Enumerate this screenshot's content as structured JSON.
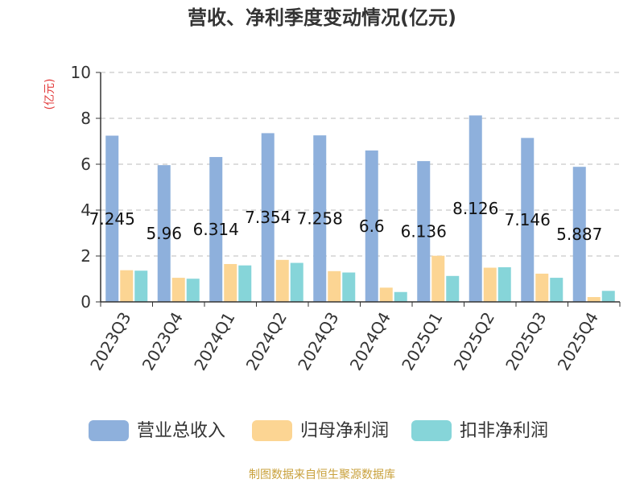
{
  "chart_data": {
    "type": "bar",
    "title": "营收、净利季度变动情况(亿元)",
    "ylabel": "(亿元)",
    "ylim": [
      0,
      10
    ],
    "yticks": [
      0,
      2,
      4,
      6,
      8,
      10
    ],
    "grid": true,
    "legend_position": "bottom",
    "categories": [
      "2023Q3",
      "2023Q4",
      "2024Q1",
      "2024Q2",
      "2024Q3",
      "2024Q4",
      "2025Q1",
      "2025Q2",
      "2025Q3",
      "2025Q4"
    ],
    "series": [
      {
        "name": "营业总收入",
        "color": "#8eb0dc",
        "values": [
          7.245,
          5.96,
          6.314,
          7.354,
          7.258,
          6.6,
          6.136,
          8.126,
          7.146,
          5.887
        ],
        "data_labels": [
          "7.245",
          "5.96",
          "6.314",
          "7.354",
          "7.258",
          "6.6",
          "6.136",
          "8.126",
          "7.146",
          "5.887"
        ]
      },
      {
        "name": "归母净利润",
        "color": "#fcd593",
        "values": [
          1.38,
          1.05,
          1.65,
          1.83,
          1.34,
          0.62,
          2.01,
          1.49,
          1.23,
          0.21
        ]
      },
      {
        "name": "扣非净利润",
        "color": "#86d5d9",
        "values": [
          1.36,
          1.01,
          1.59,
          1.7,
          1.28,
          0.43,
          1.13,
          1.51,
          1.05,
          0.48
        ]
      }
    ]
  },
  "footer": {
    "source": "制图数据来自恒生聚源数据库",
    "source_color": "#c9a13c"
  },
  "ylabel_color": "#e23b3b"
}
